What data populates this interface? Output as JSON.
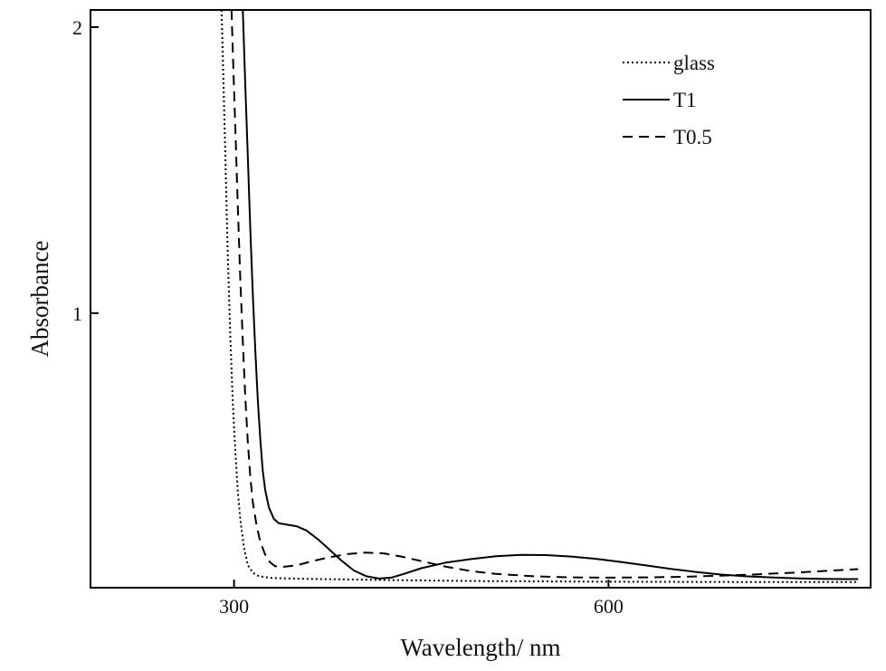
{
  "chart_data": {
    "type": "line",
    "title": "",
    "xlabel": "Wavelength/ nm",
    "ylabel": "Absorbance",
    "xlim": [
      185,
      810
    ],
    "ylim": [
      0.04,
      2.06
    ],
    "xticks": [
      300,
      600
    ],
    "yticks": [
      1,
      2
    ],
    "xtick_labels": [
      "300",
      "600"
    ],
    "ytick_labels": [
      "1",
      "2"
    ],
    "grid": false,
    "legend_position": "top-right",
    "series": [
      {
        "name": "glass",
        "style": "dotted",
        "color": "#000000",
        "points": [
          [
            290,
            2.06
          ],
          [
            291,
            1.9
          ],
          [
            293,
            1.55
          ],
          [
            295,
            1.2
          ],
          [
            297,
            0.92
          ],
          [
            299,
            0.69
          ],
          [
            301,
            0.52
          ],
          [
            303,
            0.38
          ],
          [
            305,
            0.28
          ],
          [
            308,
            0.18
          ],
          [
            311,
            0.12
          ],
          [
            315,
            0.092
          ],
          [
            320,
            0.08
          ],
          [
            330,
            0.074
          ],
          [
            345,
            0.072
          ],
          [
            370,
            0.07
          ],
          [
            420,
            0.067
          ],
          [
            500,
            0.063
          ],
          [
            600,
            0.061
          ],
          [
            700,
            0.06
          ],
          [
            800,
            0.06
          ]
        ]
      },
      {
        "name": "T1",
        "style": "solid",
        "color": "#000000",
        "points": [
          [
            307,
            2.06
          ],
          [
            309,
            1.8
          ],
          [
            311,
            1.55
          ],
          [
            313,
            1.3
          ],
          [
            315,
            1.07
          ],
          [
            317,
            0.87
          ],
          [
            319,
            0.7
          ],
          [
            321,
            0.56
          ],
          [
            323,
            0.45
          ],
          [
            325,
            0.38
          ],
          [
            328,
            0.32
          ],
          [
            332,
            0.28
          ],
          [
            336,
            0.265
          ],
          [
            343,
            0.26
          ],
          [
            350,
            0.255
          ],
          [
            358,
            0.24
          ],
          [
            367,
            0.21
          ],
          [
            376,
            0.175
          ],
          [
            386,
            0.135
          ],
          [
            396,
            0.1
          ],
          [
            406,
            0.08
          ],
          [
            416,
            0.072
          ],
          [
            426,
            0.075
          ],
          [
            436,
            0.088
          ],
          [
            450,
            0.108
          ],
          [
            470,
            0.128
          ],
          [
            490,
            0.14
          ],
          [
            510,
            0.15
          ],
          [
            530,
            0.155
          ],
          [
            550,
            0.154
          ],
          [
            570,
            0.149
          ],
          [
            590,
            0.141
          ],
          [
            610,
            0.13
          ],
          [
            630,
            0.118
          ],
          [
            650,
            0.106
          ],
          [
            670,
            0.095
          ],
          [
            690,
            0.086
          ],
          [
            710,
            0.08
          ],
          [
            730,
            0.076
          ],
          [
            750,
            0.073
          ],
          [
            770,
            0.071
          ],
          [
            790,
            0.07
          ],
          [
            800,
            0.07
          ]
        ]
      },
      {
        "name": "T0.5",
        "style": "dashed",
        "color": "#000000",
        "points": [
          [
            298,
            2.06
          ],
          [
            299,
            1.92
          ],
          [
            301,
            1.65
          ],
          [
            303,
            1.38
          ],
          [
            305,
            1.12
          ],
          [
            307,
            0.9
          ],
          [
            309,
            0.71
          ],
          [
            311,
            0.55
          ],
          [
            313,
            0.43
          ],
          [
            315,
            0.34
          ],
          [
            318,
            0.26
          ],
          [
            321,
            0.2
          ],
          [
            325,
            0.155
          ],
          [
            329,
            0.128
          ],
          [
            333,
            0.115
          ],
          [
            340,
            0.113
          ],
          [
            350,
            0.118
          ],
          [
            360,
            0.13
          ],
          [
            375,
            0.145
          ],
          [
            390,
            0.157
          ],
          [
            405,
            0.163
          ],
          [
            420,
            0.16
          ],
          [
            435,
            0.148
          ],
          [
            450,
            0.133
          ],
          [
            470,
            0.113
          ],
          [
            490,
            0.098
          ],
          [
            510,
            0.088
          ],
          [
            540,
            0.08
          ],
          [
            570,
            0.076
          ],
          [
            600,
            0.075
          ],
          [
            630,
            0.076
          ],
          [
            660,
            0.078
          ],
          [
            690,
            0.082
          ],
          [
            720,
            0.087
          ],
          [
            750,
            0.093
          ],
          [
            780,
            0.1
          ],
          [
            800,
            0.105
          ]
        ]
      }
    ]
  }
}
